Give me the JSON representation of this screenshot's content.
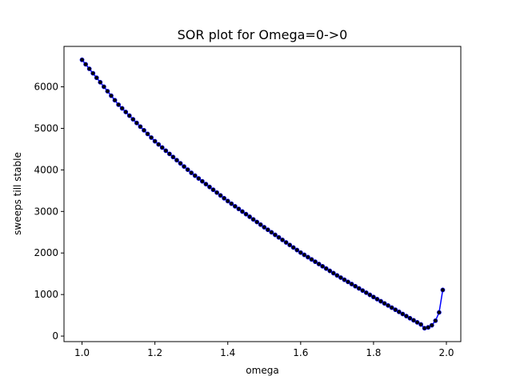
{
  "chart_data": {
    "type": "line",
    "title": "SOR plot for Omega=0->0",
    "x_label": "omega",
    "y_label": "sweeps till stable",
    "x": [
      1.0,
      1.01,
      1.02,
      1.03,
      1.04,
      1.05,
      1.06,
      1.07,
      1.08,
      1.09,
      1.1,
      1.11,
      1.12,
      1.13,
      1.14,
      1.15,
      1.16,
      1.17,
      1.18,
      1.19,
      1.2,
      1.21,
      1.22,
      1.23,
      1.24,
      1.25,
      1.26,
      1.27,
      1.28,
      1.29,
      1.3,
      1.31,
      1.32,
      1.33,
      1.34,
      1.35,
      1.36,
      1.37,
      1.38,
      1.39,
      1.4,
      1.41,
      1.42,
      1.43,
      1.44,
      1.45,
      1.46,
      1.47,
      1.48,
      1.49,
      1.5,
      1.51,
      1.52,
      1.53,
      1.54,
      1.55,
      1.56,
      1.57,
      1.58,
      1.59,
      1.6,
      1.61,
      1.62,
      1.63,
      1.64,
      1.65,
      1.66,
      1.67,
      1.68,
      1.69,
      1.7,
      1.71,
      1.72,
      1.73,
      1.74,
      1.75,
      1.76,
      1.77,
      1.78,
      1.79,
      1.8,
      1.81,
      1.82,
      1.83,
      1.84,
      1.85,
      1.86,
      1.87,
      1.88,
      1.89,
      1.9,
      1.91,
      1.92,
      1.93,
      1.94,
      1.95,
      1.96,
      1.97,
      1.98,
      1.99
    ],
    "series": [
      {
        "color": "#0000ff",
        "marker_color": "#000000",
        "values": [
          6650,
          6542,
          6434,
          6326,
          6218,
          6110,
          6002,
          5894,
          5786,
          5678,
          5570,
          5482,
          5394,
          5306,
          5218,
          5130,
          5042,
          4954,
          4866,
          4778,
          4690,
          4614,
          4538,
          4462,
          4386,
          4310,
          4234,
          4158,
          4082,
          4006,
          3930,
          3862,
          3794,
          3726,
          3658,
          3590,
          3522,
          3454,
          3386,
          3318,
          3250,
          3187,
          3124,
          3061,
          2998,
          2935,
          2872,
          2809,
          2746,
          2683,
          2620,
          2559,
          2498,
          2437,
          2376,
          2315,
          2254,
          2193,
          2132,
          2071,
          2010,
          1955,
          1900,
          1845,
          1790,
          1735,
          1680,
          1625,
          1570,
          1515,
          1460,
          1408,
          1356,
          1304,
          1252,
          1200,
          1148,
          1096,
          1044,
          992,
          940,
          889,
          838,
          787,
          736,
          685,
          634,
          583,
          532,
          481,
          430,
          380,
          330,
          280,
          190,
          210,
          260,
          370,
          570,
          1110
        ]
      }
    ],
    "xlim": [
      0.9505,
      2.0395
    ],
    "ylim": [
      -133,
      6973
    ],
    "xticks": [
      {
        "value": 1.0,
        "label": "1.0"
      },
      {
        "value": 1.2,
        "label": "1.2"
      },
      {
        "value": 1.4,
        "label": "1.4"
      },
      {
        "value": 1.6,
        "label": "1.6"
      },
      {
        "value": 1.8,
        "label": "1.8"
      },
      {
        "value": 2.0,
        "label": "2.0"
      }
    ],
    "yticks": [
      0,
      1000,
      2000,
      3000,
      4000,
      5000,
      6000
    ],
    "grid": false
  }
}
